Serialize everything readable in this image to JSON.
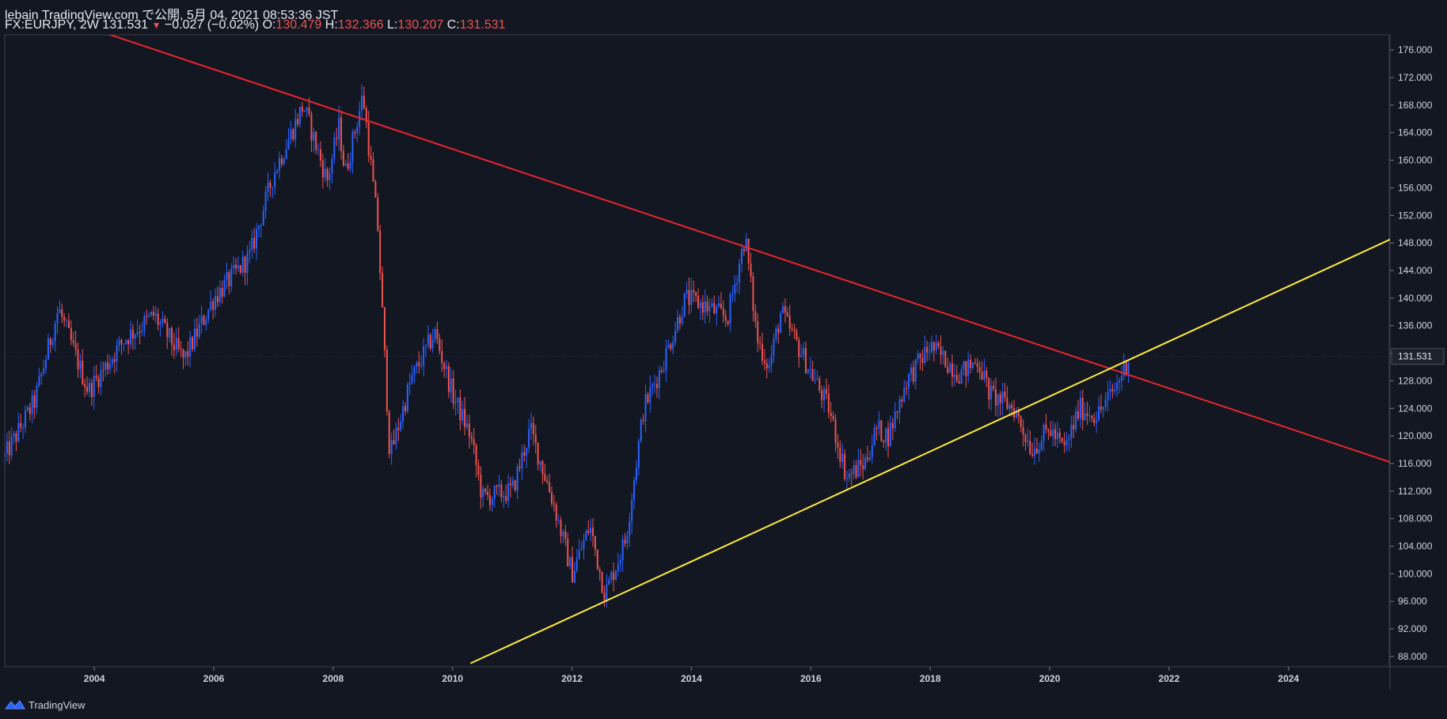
{
  "header": {
    "publisher": "lebain TradingView.com で公開, 5月 04, 2021 08:53:36 JST",
    "symbol": "FX:EURJPY, 2W",
    "last": "131.531",
    "change": "−0.027 (−0.02%)",
    "o_label": "O:",
    "o_value": "130.479",
    "h_label": "H:",
    "h_value": "132.366",
    "l_label": "L:",
    "l_value": "130.207",
    "c_label": "C:",
    "c_value": "131.531"
  },
  "footer": {
    "brand": "TradingView"
  },
  "colors": {
    "background": "#131722",
    "up": "#2962ff",
    "down": "#ef5350",
    "resistance_line": "#e8262b",
    "support_line": "#ffeb3b",
    "axis_text": "#d1d4dc"
  },
  "chart_data": {
    "type": "candlestick",
    "title": "FX:EURJPY, 2W",
    "x_ticks": [
      "2004",
      "2006",
      "2008",
      "2010",
      "2012",
      "2014",
      "2016",
      "2018",
      "2020",
      "2022",
      "2024"
    ],
    "y_ticks": [
      "88.000",
      "92.000",
      "96.000",
      "100.000",
      "104.000",
      "108.000",
      "112.000",
      "116.000",
      "120.000",
      "124.000",
      "128.000",
      "132.000",
      "136.000",
      "140.000",
      "144.000",
      "148.000",
      "152.000",
      "156.000",
      "160.000",
      "164.000",
      "168.000",
      "172.000",
      "176.000"
    ],
    "xlim": [
      2002.5,
      2025.7
    ],
    "ylim": [
      86.5,
      178.2
    ],
    "last_price_label": "131.531",
    "key_points": [
      {
        "x": 2002.5,
        "y": 117.0
      },
      {
        "x": 2003.0,
        "y": 125.0
      },
      {
        "x": 2003.4,
        "y": 138.5
      },
      {
        "x": 2003.9,
        "y": 126.5
      },
      {
        "x": 2004.5,
        "y": 134.0
      },
      {
        "x": 2005.0,
        "y": 137.5
      },
      {
        "x": 2005.5,
        "y": 131.0
      },
      {
        "x": 2006.0,
        "y": 140.0
      },
      {
        "x": 2006.6,
        "y": 146.0
      },
      {
        "x": 2007.0,
        "y": 158.0
      },
      {
        "x": 2007.5,
        "y": 168.0
      },
      {
        "x": 2007.9,
        "y": 157.0
      },
      {
        "x": 2008.1,
        "y": 165.0
      },
      {
        "x": 2008.2,
        "y": 158.0
      },
      {
        "x": 2008.5,
        "y": 169.5
      },
      {
        "x": 2008.75,
        "y": 150.0
      },
      {
        "x": 2008.95,
        "y": 117.0
      },
      {
        "x": 2009.3,
        "y": 128.0
      },
      {
        "x": 2009.7,
        "y": 135.0
      },
      {
        "x": 2010.0,
        "y": 126.0
      },
      {
        "x": 2010.3,
        "y": 120.0
      },
      {
        "x": 2010.5,
        "y": 111.0
      },
      {
        "x": 2011.0,
        "y": 112.0
      },
      {
        "x": 2011.3,
        "y": 121.0
      },
      {
        "x": 2011.7,
        "y": 110.0
      },
      {
        "x": 2012.0,
        "y": 100.0
      },
      {
        "x": 2012.3,
        "y": 107.0
      },
      {
        "x": 2012.55,
        "y": 97.0
      },
      {
        "x": 2012.9,
        "y": 105.0
      },
      {
        "x": 2013.2,
        "y": 124.0
      },
      {
        "x": 2013.5,
        "y": 130.0
      },
      {
        "x": 2013.9,
        "y": 140.0
      },
      {
        "x": 2014.2,
        "y": 139.0
      },
      {
        "x": 2014.6,
        "y": 137.0
      },
      {
        "x": 2014.9,
        "y": 149.0
      },
      {
        "x": 2015.1,
        "y": 134.0
      },
      {
        "x": 2015.3,
        "y": 130.0
      },
      {
        "x": 2015.5,
        "y": 138.0
      },
      {
        "x": 2015.9,
        "y": 131.0
      },
      {
        "x": 2016.3,
        "y": 124.0
      },
      {
        "x": 2016.6,
        "y": 114.0
      },
      {
        "x": 2016.9,
        "y": 116.0
      },
      {
        "x": 2017.1,
        "y": 121.0
      },
      {
        "x": 2017.3,
        "y": 120.0
      },
      {
        "x": 2017.6,
        "y": 128.0
      },
      {
        "x": 2018.0,
        "y": 133.0
      },
      {
        "x": 2018.5,
        "y": 129.0
      },
      {
        "x": 2018.8,
        "y": 131.0
      },
      {
        "x": 2019.0,
        "y": 126.0
      },
      {
        "x": 2019.4,
        "y": 124.0
      },
      {
        "x": 2019.7,
        "y": 118.0
      },
      {
        "x": 2020.0,
        "y": 121.0
      },
      {
        "x": 2020.25,
        "y": 118.0
      },
      {
        "x": 2020.5,
        "y": 124.0
      },
      {
        "x": 2020.8,
        "y": 123.0
      },
      {
        "x": 2021.1,
        "y": 127.0
      },
      {
        "x": 2021.33,
        "y": 131.5
      }
    ],
    "lines": [
      {
        "name": "resistance",
        "color": "#e8262b",
        "points": [
          [
            2003.3,
            181.0
          ],
          [
            2025.7,
            116.2
          ]
        ]
      },
      {
        "name": "support",
        "color": "#ffeb3b",
        "points": [
          [
            2010.3,
            87.0
          ],
          [
            2025.7,
            148.5
          ]
        ]
      }
    ],
    "grid": false,
    "legend": "none"
  }
}
